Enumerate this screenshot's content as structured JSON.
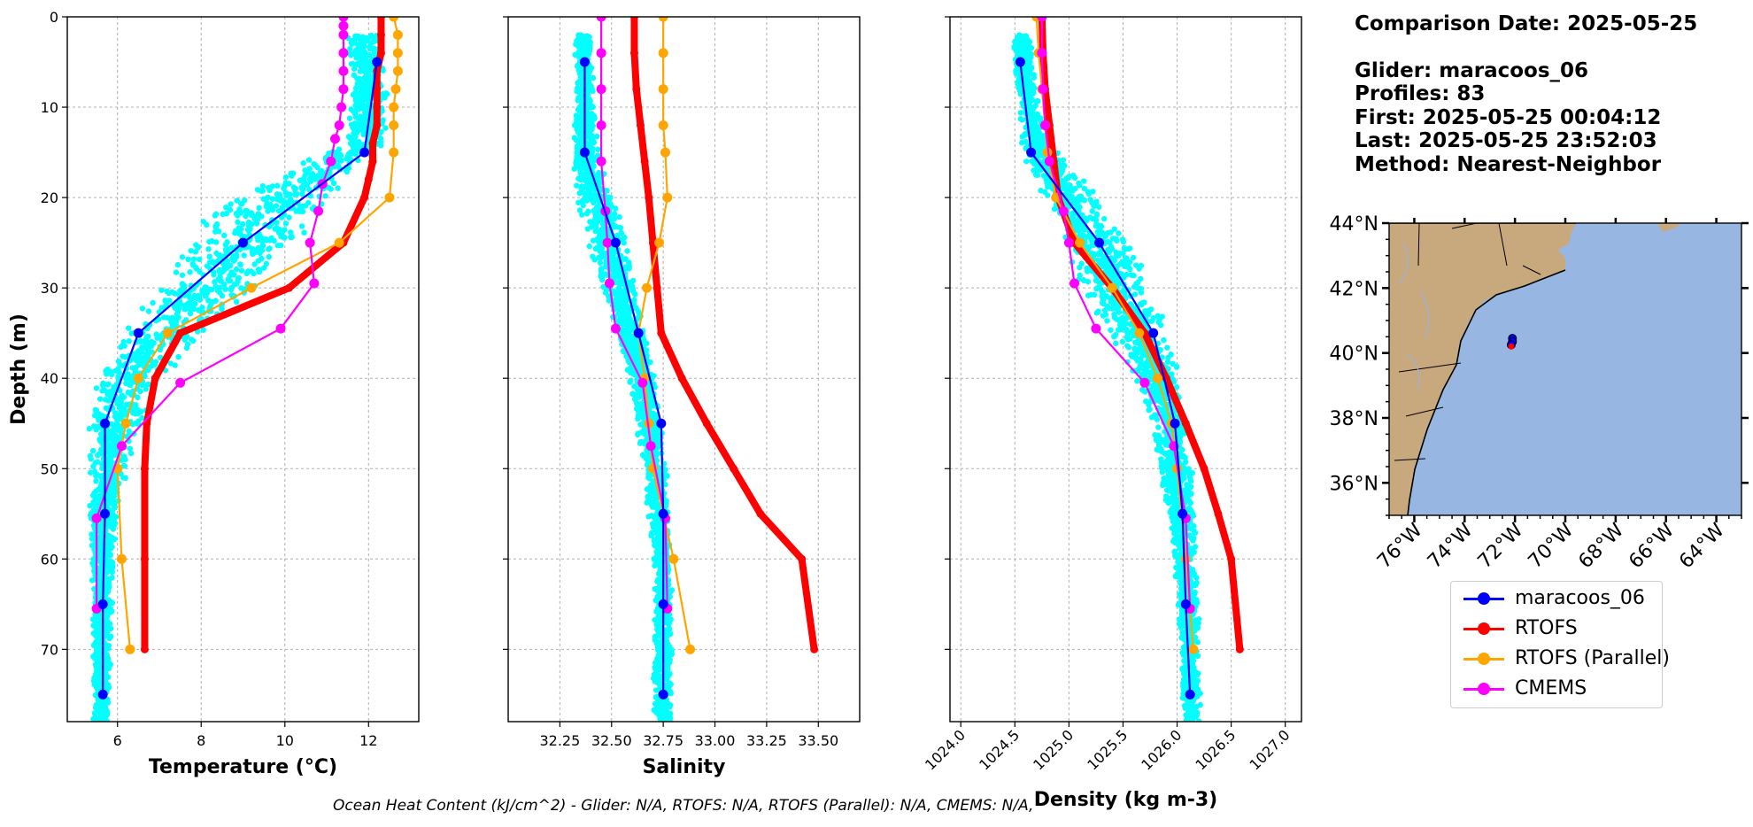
{
  "colors": {
    "glider_points": "#00ffff",
    "glider": "#0000ff",
    "rtofs": "#ff0000",
    "rtofs_parallel": "#ffa500",
    "cmems": "#ff00ff",
    "land": "#c8a97e",
    "ocean": "#97b6e1"
  },
  "info": {
    "comparison_date": "Comparison Date: 2025-05-25",
    "glider": "Glider: maracoos_06",
    "profiles": "Profiles: 83",
    "first": "First: 2025-05-25 00:04:12",
    "last": "Last: 2025-05-25 23:52:03",
    "method": "Method: Nearest-Neighbor"
  },
  "footer": "Ocean Heat Content (kJ/cm^2) - Glider: N/A,  RTOFS: N/A,  RTOFS (Parallel): N/A,  CMEMS: N/A,",
  "legend": [
    {
      "label": "maracoos_06",
      "color": "#0000ff"
    },
    {
      "label": "RTOFS",
      "color": "#ff0000"
    },
    {
      "label": "RTOFS (Parallel)",
      "color": "#ffa500"
    },
    {
      "label": "CMEMS",
      "color": "#ff00ff"
    }
  ],
  "chart_data": [
    {
      "type": "line",
      "xlabel": "Temperature (°C)",
      "ylabel": "Depth (m)",
      "xlim": [
        4.8,
        13.2
      ],
      "ylim": [
        78,
        0
      ],
      "xticks": [
        6,
        8,
        10,
        12
      ],
      "yticks": [
        0,
        10,
        20,
        30,
        40,
        50,
        60,
        70
      ],
      "grid": true,
      "scatter": {
        "name": "maracoos_06 raw",
        "color": "#00ffff",
        "envelope": [
          [
            2,
            11.4,
            12.4
          ],
          [
            8,
            11.6,
            12.5
          ],
          [
            14,
            11.4,
            12.4
          ],
          [
            18,
            9.5,
            11.6
          ],
          [
            22,
            8.0,
            10.8
          ],
          [
            26,
            7.5,
            10.2
          ],
          [
            30,
            6.8,
            9.6
          ],
          [
            34,
            6.2,
            8.4
          ],
          [
            38,
            5.6,
            7.5
          ],
          [
            42,
            5.4,
            6.9
          ],
          [
            46,
            5.3,
            6.5
          ],
          [
            55,
            5.3,
            6.0
          ],
          [
            65,
            5.4,
            5.9
          ],
          [
            78,
            5.4,
            5.8
          ]
        ]
      },
      "series": [
        {
          "name": "maracoos_06",
          "color": "#0000ff",
          "depth": [
            5,
            15,
            25,
            35,
            45,
            55,
            65,
            75
          ],
          "values": [
            12.2,
            11.9,
            9.0,
            6.5,
            5.7,
            5.7,
            5.65,
            5.65
          ]
        },
        {
          "name": "RTOFS",
          "color": "#ff0000",
          "depth": [
            0,
            2,
            4,
            6,
            8,
            10,
            12,
            14,
            16,
            18,
            20,
            25,
            30,
            35,
            40,
            45,
            50,
            60,
            70
          ],
          "values": [
            12.3,
            12.3,
            12.3,
            12.2,
            12.2,
            12.2,
            12.2,
            12.1,
            12.1,
            12.0,
            11.9,
            11.4,
            10.1,
            7.5,
            6.9,
            6.7,
            6.65,
            6.65,
            6.65
          ]
        },
        {
          "name": "RTOFS (Parallel)",
          "color": "#ffa500",
          "depth": [
            0,
            2,
            4,
            6,
            8,
            10,
            12,
            15,
            20,
            25,
            30,
            35,
            40,
            45,
            50,
            60,
            70
          ],
          "values": [
            12.6,
            12.7,
            12.7,
            12.7,
            12.65,
            12.6,
            12.6,
            12.6,
            12.5,
            11.3,
            9.2,
            7.2,
            6.5,
            6.2,
            6.0,
            6.1,
            6.3
          ]
        },
        {
          "name": "CMEMS",
          "color": "#ff00ff",
          "depth": [
            0,
            1,
            2,
            4,
            6,
            8,
            10,
            12,
            13.5,
            16,
            18.5,
            21.5,
            25,
            29.5,
            34.5,
            40.5,
            47.5,
            55.5,
            65.5
          ],
          "values": [
            11.4,
            11.4,
            11.4,
            11.4,
            11.4,
            11.4,
            11.35,
            11.3,
            11.2,
            11.1,
            10.9,
            10.8,
            10.6,
            10.7,
            9.9,
            7.5,
            6.1,
            5.5,
            5.5
          ]
        }
      ]
    },
    {
      "type": "line",
      "xlabel": "Salinity",
      "ylabel": "",
      "xlim": [
        32.0,
        33.7
      ],
      "ylim": [
        78,
        0
      ],
      "xticks": [
        32.25,
        32.5,
        32.75,
        33.0,
        33.25,
        33.5
      ],
      "xticklabels": [
        "32.25",
        "32.50",
        "32.75",
        "33.00",
        "33.25",
        "33.50"
      ],
      "yticks": [
        0,
        10,
        20,
        30,
        40,
        50,
        60,
        70
      ],
      "grid": true,
      "scatter": {
        "name": "maracoos_06 raw",
        "color": "#00ffff",
        "envelope": [
          [
            2,
            32.32,
            32.4
          ],
          [
            10,
            32.32,
            32.42
          ],
          [
            16,
            32.3,
            32.45
          ],
          [
            20,
            32.32,
            32.52
          ],
          [
            25,
            32.38,
            32.58
          ],
          [
            30,
            32.45,
            32.62
          ],
          [
            35,
            32.52,
            32.67
          ],
          [
            40,
            32.58,
            32.72
          ],
          [
            50,
            32.65,
            32.77
          ],
          [
            60,
            32.7,
            32.79
          ],
          [
            70,
            32.7,
            32.8
          ],
          [
            78,
            32.7,
            32.79
          ]
        ]
      },
      "series": [
        {
          "name": "maracoos_06",
          "color": "#0000ff",
          "depth": [
            5,
            15,
            25,
            35,
            45,
            55,
            65,
            75
          ],
          "values": [
            32.37,
            32.37,
            32.52,
            32.63,
            32.74,
            32.75,
            32.75,
            32.75
          ]
        },
        {
          "name": "RTOFS",
          "color": "#ff0000",
          "depth": [
            0,
            4,
            8,
            12,
            16,
            20,
            25,
            30,
            35,
            40,
            45,
            50,
            55,
            60,
            70
          ],
          "values": [
            32.61,
            32.61,
            32.62,
            32.64,
            32.66,
            32.68,
            32.7,
            32.72,
            32.74,
            32.84,
            32.96,
            33.09,
            33.22,
            33.42,
            33.48
          ]
        },
        {
          "name": "RTOFS (Parallel)",
          "color": "#ffa500",
          "depth": [
            0,
            4,
            8,
            12,
            15,
            20,
            25,
            30,
            35,
            40,
            45,
            50,
            60,
            70
          ],
          "values": [
            32.75,
            32.75,
            32.75,
            32.75,
            32.76,
            32.77,
            32.73,
            32.67,
            32.63,
            32.66,
            32.68,
            32.7,
            32.8,
            32.88
          ]
        },
        {
          "name": "CMEMS",
          "color": "#ff00ff",
          "depth": [
            0,
            4,
            8,
            12,
            16,
            21.5,
            25,
            29.5,
            34.5,
            40.5,
            47.5,
            55.5,
            65.5
          ],
          "values": [
            32.45,
            32.45,
            32.45,
            32.45,
            32.45,
            32.47,
            32.48,
            32.49,
            32.52,
            32.65,
            32.69,
            32.76,
            32.77
          ]
        }
      ]
    },
    {
      "type": "line",
      "xlabel": "Density (kg m-3)",
      "ylabel": "",
      "xlim": [
        1023.9,
        1027.15
      ],
      "ylim": [
        78,
        0
      ],
      "xticks": [
        1024.0,
        1024.5,
        1025.0,
        1025.5,
        1026.0,
        1026.5,
        1027.0
      ],
      "xticklabels": [
        "1024.0",
        "1024.5",
        "1025.0",
        "1025.5",
        "1026.0",
        "1026.5",
        "1027.0"
      ],
      "yticks": [
        0,
        10,
        20,
        30,
        40,
        50,
        60,
        70
      ],
      "grid": true,
      "scatter": {
        "name": "maracoos_06 raw",
        "color": "#00ffff",
        "envelope": [
          [
            2,
            1024.48,
            1024.65
          ],
          [
            8,
            1024.5,
            1024.7
          ],
          [
            14,
            1024.55,
            1024.85
          ],
          [
            18,
            1024.65,
            1025.15
          ],
          [
            22,
            1024.8,
            1025.4
          ],
          [
            26,
            1024.95,
            1025.6
          ],
          [
            30,
            1025.1,
            1025.8
          ],
          [
            35,
            1025.35,
            1025.95
          ],
          [
            40,
            1025.6,
            1026.05
          ],
          [
            45,
            1025.75,
            1026.12
          ],
          [
            55,
            1025.9,
            1026.18
          ],
          [
            65,
            1026.0,
            1026.2
          ],
          [
            78,
            1026.05,
            1026.22
          ]
        ]
      },
      "series": [
        {
          "name": "maracoos_06",
          "color": "#0000ff",
          "depth": [
            5,
            15,
            25,
            35,
            45,
            55,
            65,
            75
          ],
          "values": [
            1024.55,
            1024.65,
            1025.28,
            1025.78,
            1025.98,
            1026.05,
            1026.08,
            1026.12
          ]
        },
        {
          "name": "RTOFS",
          "color": "#ff0000",
          "depth": [
            0,
            4,
            8,
            12,
            16,
            20,
            25,
            30,
            35,
            40,
            45,
            50,
            55,
            60,
            70
          ],
          "values": [
            1024.75,
            1024.76,
            1024.78,
            1024.82,
            1024.86,
            1024.9,
            1025.05,
            1025.4,
            1025.7,
            1025.9,
            1026.08,
            1026.25,
            1026.38,
            1026.5,
            1026.58
          ]
        },
        {
          "name": "RTOFS (Parallel)",
          "color": "#ffa500",
          "depth": [
            0,
            4,
            8,
            12,
            15,
            20,
            25,
            30,
            35,
            40,
            45,
            50,
            60,
            70
          ],
          "values": [
            1024.7,
            1024.72,
            1024.75,
            1024.78,
            1024.8,
            1024.88,
            1025.1,
            1025.4,
            1025.65,
            1025.82,
            1025.95,
            1026.0,
            1026.08,
            1026.15
          ]
        },
        {
          "name": "CMEMS",
          "color": "#ff00ff",
          "depth": [
            0,
            4,
            8,
            12,
            16,
            21.5,
            25,
            29.5,
            34.5,
            40.5,
            47.5,
            55.5,
            65.5
          ],
          "values": [
            1024.75,
            1024.75,
            1024.76,
            1024.78,
            1024.82,
            1024.95,
            1025.0,
            1025.05,
            1025.25,
            1025.7,
            1025.97,
            1026.08,
            1026.12
          ]
        }
      ]
    }
  ],
  "map": {
    "lon_range": [
      -77.0,
      -63.0
    ],
    "lat_range": [
      35.0,
      44.0
    ],
    "xticks": [
      -76,
      -74,
      -72,
      -70,
      -68,
      -66,
      -64
    ],
    "xticklabels": [
      "76°W",
      "74°W",
      "72°W",
      "70°W",
      "68°W",
      "66°W",
      "64°W"
    ],
    "yticks": [
      36,
      38,
      40,
      42,
      44
    ],
    "yticklabels": [
      "36°N",
      "38°N",
      "40°N",
      "42°N",
      "44°N"
    ],
    "glider_track": [
      [
        -72.1,
        40.45
      ],
      [
        -72.1,
        40.35
      ],
      [
        -72.15,
        40.25
      ]
    ],
    "model_point": [
      -72.15,
      40.2
    ]
  }
}
